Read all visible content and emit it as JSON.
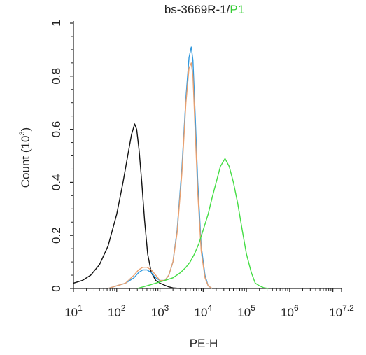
{
  "chart_data": {
    "type": "line",
    "title_prefix": "bs-3669R-1/",
    "title_gate": "P1",
    "title_gate_color": "#33cc33",
    "xlabel": "PE-H",
    "ylabel": "Count (10",
    "ylabel_exp": "3",
    "ylabel_suffix": ")",
    "x_scale": "log",
    "xlim": [
      10,
      15848932
    ],
    "ylim": [
      0,
      1
    ],
    "x_ticks": [
      {
        "value": 10,
        "base": "10",
        "exp": "1"
      },
      {
        "value": 100,
        "base": "10",
        "exp": "2"
      },
      {
        "value": 1000,
        "base": "10",
        "exp": "3"
      },
      {
        "value": 10000,
        "base": "10",
        "exp": "4"
      },
      {
        "value": 100000,
        "base": "10",
        "exp": "5"
      },
      {
        "value": 1000000,
        "base": "10",
        "exp": "6"
      },
      {
        "value": 15848932,
        "base": "10",
        "exp": "7.2"
      }
    ],
    "y_ticks": [
      {
        "value": 0,
        "label": "0"
      },
      {
        "value": 0.2,
        "label": "0.2"
      },
      {
        "value": 0.4,
        "label": "0.4"
      },
      {
        "value": 0.6,
        "label": "0.6"
      },
      {
        "value": 0.8,
        "label": "0.8"
      },
      {
        "value": 1,
        "label": "1"
      }
    ],
    "series": [
      {
        "color": "#111111",
        "x": [
          10,
          16,
          25,
          40,
          63,
          100,
          140,
          180,
          220,
          260,
          290,
          330,
          380,
          440,
          520,
          630,
          800,
          1000,
          1300,
          1600,
          2000,
          3000
        ],
        "y": [
          0.02,
          0.03,
          0.05,
          0.09,
          0.16,
          0.28,
          0.4,
          0.5,
          0.58,
          0.62,
          0.6,
          0.52,
          0.4,
          0.26,
          0.13,
          0.06,
          0.03,
          0.02,
          0.012,
          0.006,
          0.002,
          0.0
        ]
      },
      {
        "color": "#3399dd",
        "x": [
          63,
          100,
          160,
          250,
          320,
          400,
          500,
          630,
          800,
          1000,
          1300,
          1600,
          2000,
          2500,
          3200,
          4000,
          4700,
          5300,
          5800,
          6500,
          7500,
          9000,
          11000,
          13000,
          16000
        ],
        "y": [
          0.0,
          0.01,
          0.02,
          0.04,
          0.06,
          0.07,
          0.07,
          0.06,
          0.04,
          0.03,
          0.03,
          0.05,
          0.1,
          0.22,
          0.45,
          0.72,
          0.87,
          0.91,
          0.86,
          0.66,
          0.4,
          0.16,
          0.05,
          0.01,
          0.0
        ]
      },
      {
        "color": "#e8a070",
        "x": [
          63,
          100,
          160,
          250,
          320,
          400,
          500,
          630,
          800,
          1000,
          1300,
          1600,
          2000,
          2500,
          3200,
          4000,
          4700,
          5300,
          5800,
          6500,
          7500,
          9000,
          11000,
          13000,
          16000
        ],
        "y": [
          0.0,
          0.01,
          0.02,
          0.05,
          0.07,
          0.08,
          0.08,
          0.07,
          0.05,
          0.03,
          0.03,
          0.05,
          0.1,
          0.21,
          0.43,
          0.7,
          0.83,
          0.85,
          0.8,
          0.6,
          0.36,
          0.14,
          0.04,
          0.01,
          0.0
        ]
      },
      {
        "color": "#44dd44",
        "x": [
          300,
          500,
          800,
          1300,
          2000,
          3000,
          4000,
          5000,
          6300,
          8000,
          10000,
          13000,
          16000,
          20000,
          25000,
          32000,
          40000,
          50000,
          63000,
          80000,
          100000,
          130000,
          160000,
          200000,
          250000,
          320000
        ],
        "y": [
          0.0,
          0.01,
          0.02,
          0.03,
          0.04,
          0.06,
          0.08,
          0.1,
          0.13,
          0.17,
          0.22,
          0.28,
          0.34,
          0.4,
          0.46,
          0.49,
          0.46,
          0.4,
          0.32,
          0.22,
          0.13,
          0.06,
          0.02,
          0.01,
          0.003,
          0.0
        ]
      }
    ]
  }
}
